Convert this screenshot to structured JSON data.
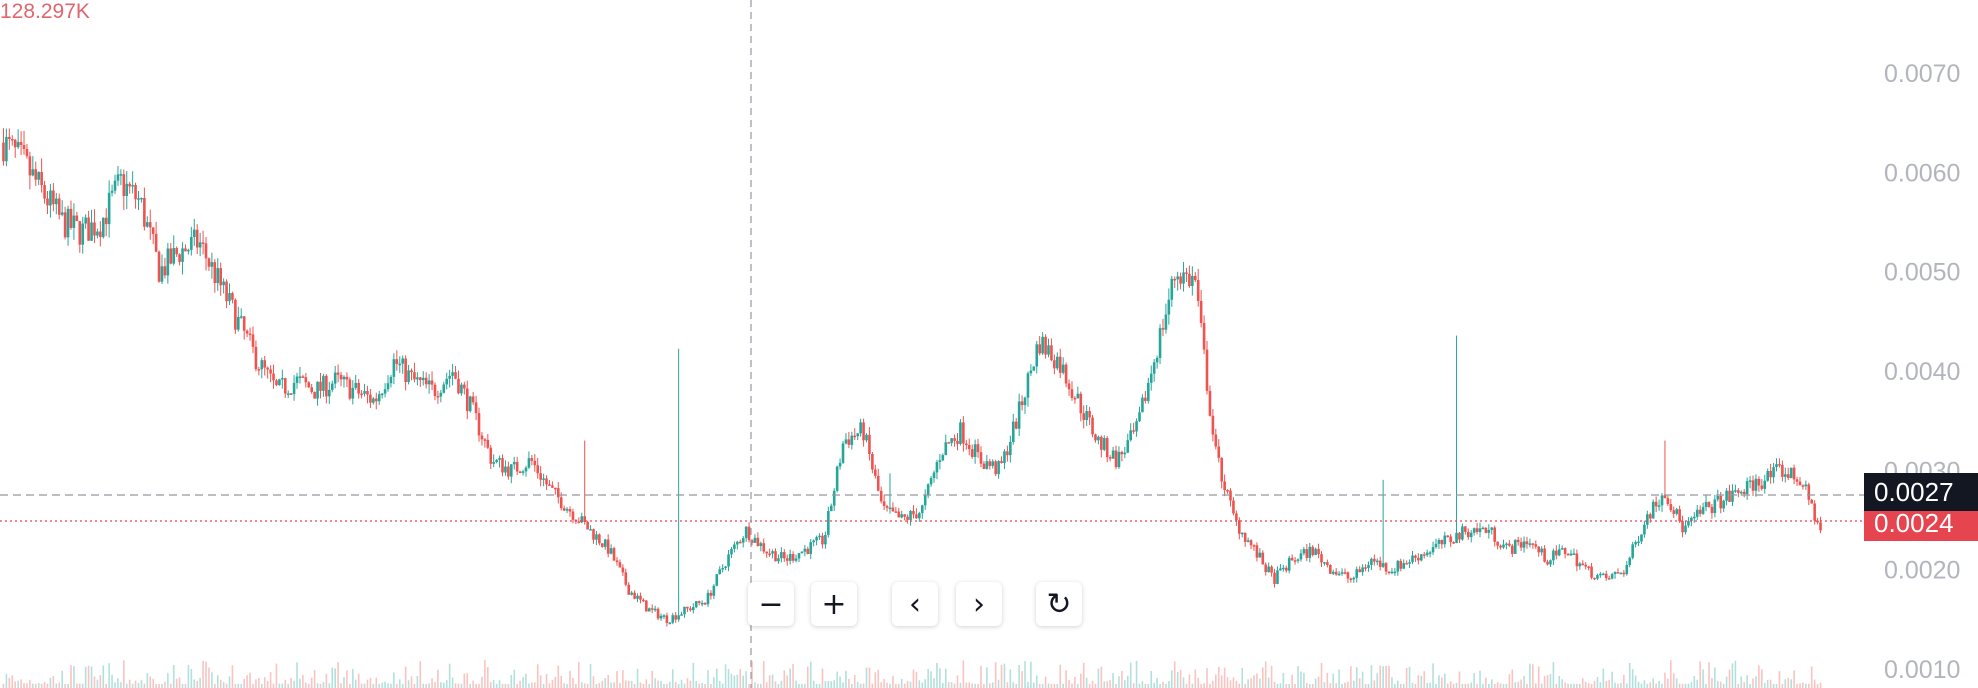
{
  "header": {
    "volume_value": "128.297K"
  },
  "price_tags": {
    "last_close": "0.0027",
    "current": "0.0024"
  },
  "toolbar": {
    "zoom_out": "−",
    "zoom_in": "+",
    "scroll_left": "‹",
    "scroll_right": "›",
    "reset": "↻"
  },
  "colors": {
    "up": "#26a69a",
    "down": "#ef5350",
    "grid_text": "#b2b5be",
    "last_tag": "#131722",
    "current_tag": "#e6444e"
  },
  "chart_data": {
    "type": "candlestick",
    "y_axis": {
      "ticks": [
        "0.0070",
        "0.0060",
        "0.0050",
        "0.0040",
        "0.0030",
        "0.0020",
        "0.0010"
      ],
      "range": [
        0.00095,
        0.0077
      ]
    },
    "last_close_line": 0.0027,
    "current_price_line": 0.00243,
    "crosshair_x_fraction": 0.38,
    "legend": "none",
    "closes_approx": [
      0.0063,
      0.0061,
      0.0058,
      0.0055,
      0.0054,
      0.0055,
      0.0059,
      0.0057,
      0.005,
      0.0052,
      0.0053,
      0.0049,
      0.0045,
      0.0041,
      0.0038,
      0.0039,
      0.0038,
      0.0039,
      0.0038,
      0.0037,
      0.0041,
      0.0039,
      0.0038,
      0.004,
      0.0036,
      0.0031,
      0.003,
      0.0031,
      0.0028,
      0.0026,
      0.0024,
      0.0022,
      0.0018,
      0.0016,
      0.0015,
      0.0016,
      0.0017,
      0.0021,
      0.0024,
      0.0022,
      0.0021,
      0.0022,
      0.0023,
      0.0033,
      0.0034,
      0.0026,
      0.0025,
      0.0026,
      0.0032,
      0.0034,
      0.0031,
      0.003,
      0.0036,
      0.0043,
      0.0041,
      0.0037,
      0.0033,
      0.0031,
      0.0034,
      0.0042,
      0.005,
      0.0049,
      0.0032,
      0.0025,
      0.0022,
      0.0019,
      0.0021,
      0.0022,
      0.002,
      0.0019,
      0.0021,
      0.002,
      0.0021,
      0.0022,
      0.0023,
      0.0024,
      0.0024,
      0.0022,
      0.0023,
      0.0021,
      0.0022,
      0.002,
      0.0019,
      0.002,
      0.0025,
      0.0028,
      0.0024,
      0.0026,
      0.0027,
      0.0028,
      0.0029,
      0.003,
      0.0029,
      0.0024
    ]
  }
}
